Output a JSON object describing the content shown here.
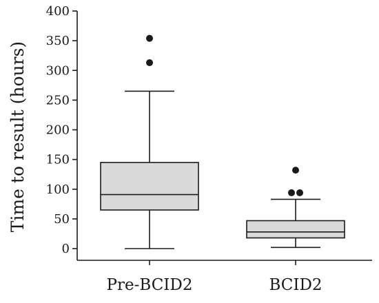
{
  "chart_data": {
    "type": "box",
    "title": "",
    "xlabel": "",
    "ylabel": "Time to result (hours)",
    "ylim": [
      0,
      400
    ],
    "yticks": [
      0,
      50,
      100,
      150,
      200,
      250,
      300,
      350,
      400
    ],
    "grid": false,
    "categories": [
      "Pre-BCID2",
      "BCID2"
    ],
    "boxes": [
      {
        "category": "Pre-BCID2",
        "whisker_low": 0,
        "q1": 65,
        "median": 91,
        "q3": 145,
        "whisker_high": 265,
        "outliers": [
          313,
          354
        ]
      },
      {
        "category": "BCID2",
        "whisker_low": 2,
        "q1": 18,
        "median": 28,
        "q3": 47,
        "whisker_high": 83,
        "outliers": [
          94,
          94,
          132
        ]
      }
    ],
    "box_fill": "#d9d9d9",
    "line_color": "#1a1a1a"
  }
}
